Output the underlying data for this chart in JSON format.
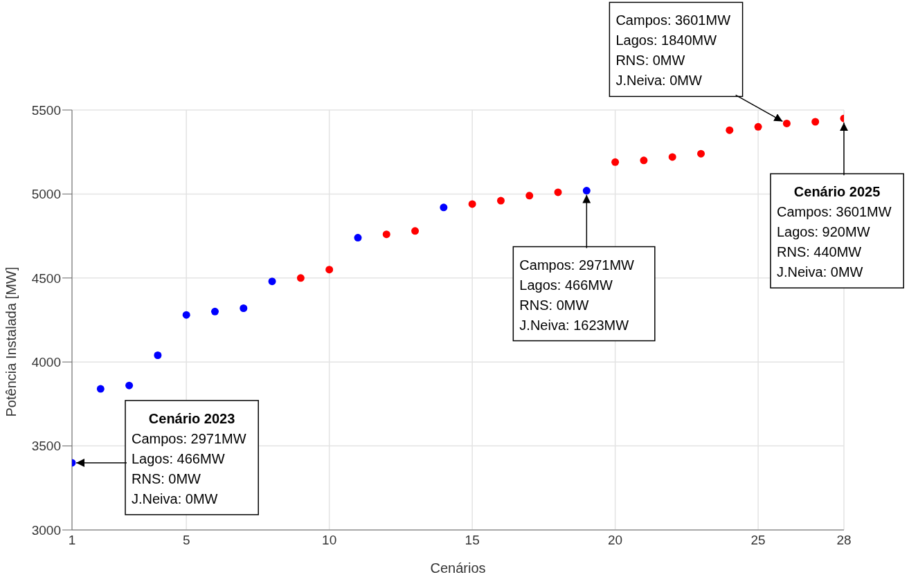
{
  "chart_data": {
    "type": "scatter",
    "xlabel": "Cenários",
    "ylabel": "Potência Instalada [MW]",
    "x": [
      1,
      2,
      3,
      4,
      5,
      6,
      7,
      8,
      9,
      10,
      11,
      12,
      13,
      14,
      15,
      16,
      17,
      18,
      19,
      20,
      21,
      22,
      23,
      24,
      25,
      26,
      27,
      28
    ],
    "series": [
      {
        "color": "#0000ff",
        "values": [
          3400,
          3840,
          3860,
          4040,
          4280,
          4300,
          4320,
          4480,
          null,
          null,
          4740,
          null,
          null,
          4920,
          null,
          null,
          null,
          null,
          5020,
          null,
          null,
          null,
          null,
          null,
          null,
          null,
          null,
          null
        ]
      },
      {
        "color": "#ff0000",
        "values": [
          null,
          null,
          null,
          null,
          null,
          null,
          null,
          null,
          4500,
          4550,
          null,
          4760,
          4780,
          null,
          4940,
          4960,
          4990,
          5010,
          null,
          5190,
          5200,
          5220,
          5240,
          5380,
          5400,
          5420,
          5430,
          5450
        ]
      }
    ],
    "xlim": [
      1,
      28
    ],
    "xticks": [
      1,
      5,
      10,
      15,
      20,
      25,
      28
    ],
    "ylim": [
      3000,
      5500
    ],
    "yticks": [
      3000,
      3500,
      4000,
      4500,
      5000,
      5500
    ],
    "grid": true,
    "marker": "circle",
    "annotations": [
      {
        "text": "Cenário 2023\nCampos: 2971MW\nLagos: 466MW\nRNS: 0MW\nJ.Neiva: 0MW",
        "x": 1,
        "y": 3400
      },
      {
        "text": "Campos: 2971MW\nLagos: 466MW\nRNS: 0MW\nJ.Neiva: 1623MW",
        "x": 19,
        "y": 5020
      },
      {
        "text": "Campos: 3601MW\nLagos: 1840MW\nRNS: 0MW\nJ.Neiva: 0MW",
        "x": 26,
        "y": 5420
      },
      {
        "text": "Cenário 2025\nCampos: 3601MW\nLagos: 920MW\nRNS: 440MW\nJ.Neiva: 0MW",
        "x": 28,
        "y": 5450
      }
    ]
  }
}
